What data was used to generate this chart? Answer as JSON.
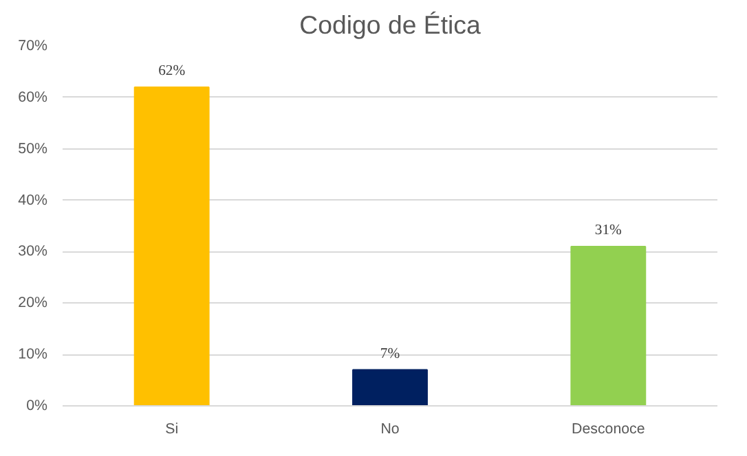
{
  "chart_data": {
    "type": "bar",
    "title": "Codigo de Ética",
    "categories": [
      "Si",
      "No",
      "Desconoce"
    ],
    "values": [
      62,
      7,
      31
    ],
    "colors": [
      "#ffc000",
      "#002060",
      "#92d050"
    ],
    "value_labels": [
      "62%",
      "7%",
      "31%"
    ],
    "ylim": [
      0,
      70
    ],
    "yticks": [
      {
        "value": 0,
        "label": "0%"
      },
      {
        "value": 10,
        "label": "10%"
      },
      {
        "value": 20,
        "label": "20%"
      },
      {
        "value": 30,
        "label": "30%"
      },
      {
        "value": 40,
        "label": "40%"
      },
      {
        "value": 50,
        "label": "50%"
      },
      {
        "value": 60,
        "label": "60%"
      },
      {
        "value": 70,
        "label": "70%"
      }
    ],
    "grid": "y"
  }
}
